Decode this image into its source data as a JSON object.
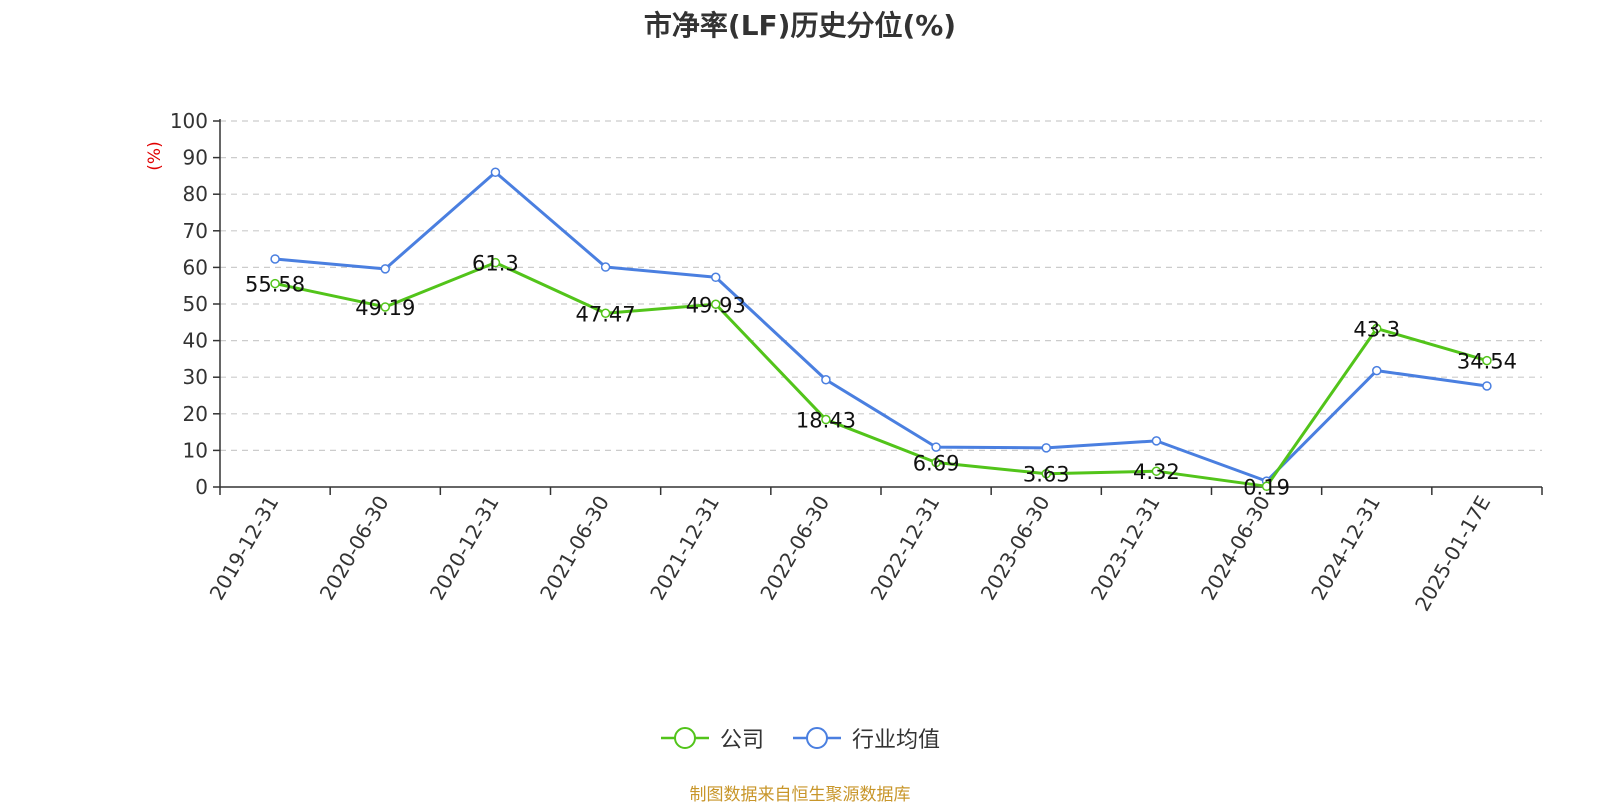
{
  "chart_data": {
    "type": "line",
    "title": "市净率(LF)历史分位(%)",
    "ylabel": "(%)",
    "ylim": [
      0,
      100
    ],
    "yticks": [
      0,
      10,
      20,
      30,
      40,
      50,
      60,
      70,
      80,
      90,
      100
    ],
    "categories": [
      "2019-12-31",
      "2020-06-30",
      "2020-12-31",
      "2021-06-30",
      "2021-12-31",
      "2022-06-30",
      "2022-12-31",
      "2023-06-30",
      "2023-12-31",
      "2024-06-30",
      "2024-12-31",
      "2025-01-17E"
    ],
    "grid": "horizontal-dashed",
    "legend_position": "bottom",
    "series": [
      {
        "name": "公司",
        "color": "#52c41a",
        "values": [
          55.58,
          49.19,
          61.3,
          47.47,
          49.93,
          18.43,
          6.69,
          3.63,
          4.32,
          0.19,
          43.3,
          34.54
        ],
        "labels": [
          "55.58",
          "49.19",
          "61.3",
          "47.47",
          "49.93",
          "18.43",
          "6.69",
          "3.63",
          "4.32",
          "0.19",
          "43.3",
          "34.54"
        ]
      },
      {
        "name": "行业均值",
        "color": "#4a7fe0",
        "values": [
          62.3,
          59.6,
          86.0,
          60.1,
          57.3,
          29.3,
          10.9,
          10.7,
          12.6,
          1.6,
          31.8,
          27.6
        ]
      }
    ]
  },
  "source_text": "制图数据来自恒生聚源数据库"
}
